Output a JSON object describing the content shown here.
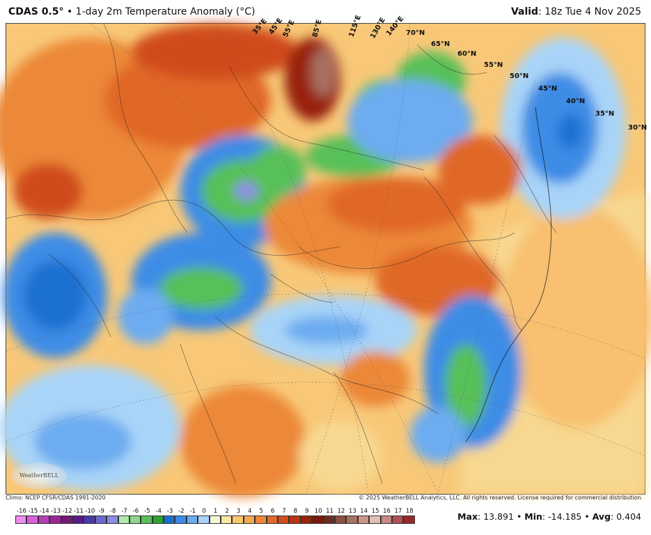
{
  "header": {
    "model": "CDAS 0.5°",
    "separator": "•",
    "product": "1-day 2m Temperature Anomaly (°C)",
    "valid_label": "Valid",
    "valid_time": "18z Tue 4 Nov 2025"
  },
  "map": {
    "longitude_labels": [
      "35°E",
      "45°E",
      "55°E",
      "85°E",
      "115°E",
      "130°E",
      "140°E"
    ],
    "latitude_labels": [
      "70°N",
      "65°N",
      "60°N",
      "55°N",
      "50°N",
      "45°N",
      "40°N",
      "35°N",
      "30°N"
    ],
    "logo_text": "WeatherBELL"
  },
  "footer": {
    "climo": "Climo: NCEP CFSR/CDAS 1991-2020",
    "copyright": "© 2025 WeatherBELL Analytics, LLC. All rights reserved. License required for commercial distribution."
  },
  "colorbar": {
    "labels": [
      "-16",
      "-15",
      "-14",
      "-13",
      "-12",
      "-11",
      "-10",
      "-9",
      "-8",
      "-7",
      "-6",
      "-5",
      "-4",
      "-3",
      "-2",
      "-1",
      "0",
      "1",
      "2",
      "3",
      "4",
      "5",
      "6",
      "7",
      "8",
      "9",
      "10",
      "11",
      "12",
      "13",
      "14",
      "15",
      "16",
      "17",
      "18"
    ],
    "colors": [
      "#f08cf0",
      "#d860d8",
      "#b83cb8",
      "#982898",
      "#781878",
      "#5a1a8a",
      "#4a3aa8",
      "#6a6ad0",
      "#8c8ce6",
      "#b0e8b0",
      "#8cd88c",
      "#58c058",
      "#30a030",
      "#1a70d0",
      "#3c8ce6",
      "#6cacf0",
      "#a8d4f8",
      "#f8f8d8",
      "#f8e8a0",
      "#f8c870",
      "#f4a850",
      "#ec8838",
      "#e06828",
      "#d04c1c",
      "#b83414",
      "#98240e",
      "#7a1a0a",
      "#6a3020",
      "#8a5040",
      "#a87060",
      "#c89888",
      "#e0c0b8",
      "#c88888",
      "#b05050",
      "#982828"
    ]
  },
  "stats": {
    "max_label": "Max",
    "max_value": "13.891",
    "min_label": "Min",
    "min_value": "-14.185",
    "avg_label": "Avg",
    "avg_value": "0.404"
  }
}
